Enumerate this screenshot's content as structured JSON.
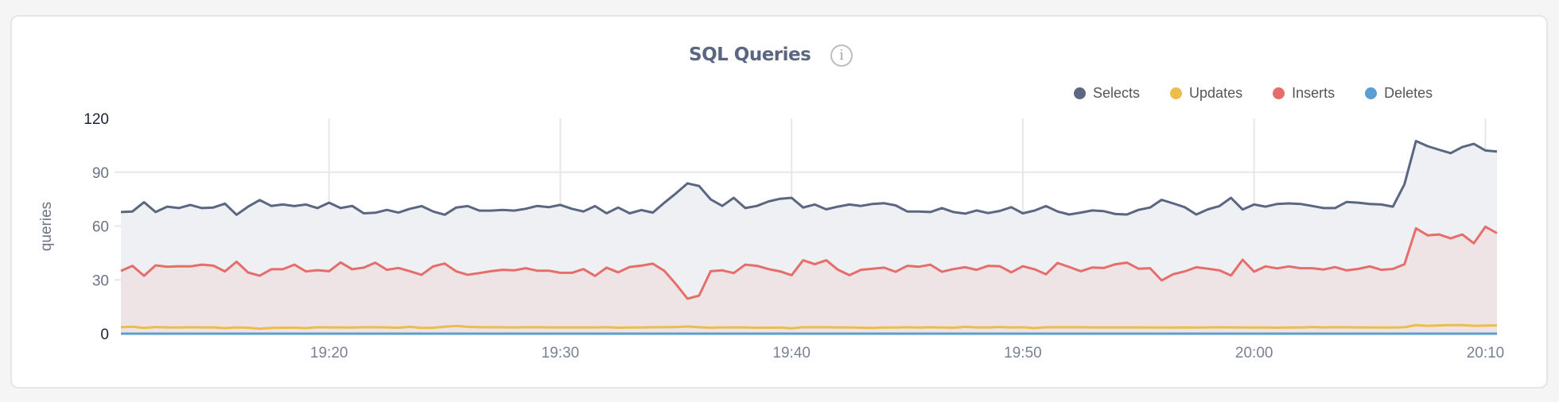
{
  "chart_data": {
    "type": "area",
    "title": "SQL Queries",
    "ylabel": "queries",
    "xlabel": "",
    "ylim": [
      0,
      120
    ],
    "yticks": [
      "0",
      "30",
      "60",
      "90",
      "120"
    ],
    "xticks": [
      "19:20",
      "19:30",
      "19:40",
      "19:50",
      "20:00",
      "20:10"
    ],
    "xlim": [
      "19:11:00",
      "20:10:30"
    ],
    "grid": true,
    "legend_position": "top-right",
    "x": [
      "19:11:00",
      "19:11:30",
      "19:12:00",
      "19:12:30",
      "19:13:00",
      "19:13:30",
      "19:14:00",
      "19:14:30",
      "19:15:00",
      "19:15:30",
      "19:16:00",
      "19:16:30",
      "19:17:00",
      "19:17:30",
      "19:18:00",
      "19:18:30",
      "19:19:00",
      "19:19:30",
      "19:20:00",
      "19:20:30",
      "19:21:00",
      "19:21:30",
      "19:22:00",
      "19:22:30",
      "19:23:00",
      "19:23:30",
      "19:24:00",
      "19:24:30",
      "19:25:00",
      "19:25:30",
      "19:26:00",
      "19:26:30",
      "19:27:00",
      "19:27:30",
      "19:28:00",
      "19:28:30",
      "19:29:00",
      "19:29:30",
      "19:30:00",
      "19:30:30",
      "19:31:00",
      "19:31:30",
      "19:32:00",
      "19:32:30",
      "19:33:00",
      "19:33:30",
      "19:34:00",
      "19:34:30",
      "19:35:00",
      "19:35:30",
      "19:36:00",
      "19:36:30",
      "19:37:00",
      "19:37:30",
      "19:38:00",
      "19:38:30",
      "19:39:00",
      "19:39:30",
      "19:40:00",
      "19:40:30",
      "19:41:00",
      "19:41:30",
      "19:42:00",
      "19:42:30",
      "19:43:00",
      "19:43:30",
      "19:44:00",
      "19:44:30",
      "19:45:00",
      "19:45:30",
      "19:46:00",
      "19:46:30",
      "19:47:00",
      "19:47:30",
      "19:48:00",
      "19:48:30",
      "19:49:00",
      "19:49:30",
      "19:50:00",
      "19:50:30",
      "19:51:00",
      "19:51:30",
      "19:52:00",
      "19:52:30",
      "19:53:00",
      "19:53:30",
      "19:54:00",
      "19:54:30",
      "19:55:00",
      "19:55:30",
      "19:56:00",
      "19:56:30",
      "19:57:00",
      "19:57:30",
      "19:58:00",
      "19:58:30",
      "19:59:00",
      "19:59:30",
      "20:00:00",
      "20:00:30",
      "20:01:00",
      "20:01:30",
      "20:02:00",
      "20:02:30",
      "20:03:00",
      "20:03:30",
      "20:04:00",
      "20:04:30",
      "20:05:00",
      "20:05:30",
      "20:06:00",
      "20:06:30",
      "20:07:00",
      "20:07:30",
      "20:08:00",
      "20:08:30",
      "20:09:00",
      "20:09:30",
      "20:10:00",
      "20:10:30"
    ],
    "series": [
      {
        "name": "Selects",
        "color": "#5b6781",
        "fill": "#eef0f4",
        "values": [
          67.8,
          68.1,
          73.3,
          67.8,
          70.8,
          70.0,
          71.8,
          70.0,
          70.3,
          72.5,
          66.3,
          70.8,
          74.5,
          71.2,
          72.0,
          71.1,
          72.0,
          70.0,
          73.0,
          70.0,
          71.2,
          67.1,
          67.4,
          69.0,
          67.5,
          69.6,
          71.1,
          68.1,
          66.3,
          70.3,
          71.1,
          68.6,
          68.6,
          69.0,
          68.6,
          69.6,
          71.2,
          70.5,
          71.8,
          69.6,
          68.1,
          71.1,
          67.1,
          70.3,
          67.1,
          68.9,
          67.5,
          73.0,
          78.2,
          83.8,
          82.3,
          74.9,
          71.2,
          75.7,
          70.0,
          71.2,
          73.7,
          75.2,
          75.7,
          70.3,
          72.0,
          69.3,
          70.8,
          72.0,
          71.2,
          72.3,
          72.7,
          71.5,
          68.1,
          68.1,
          67.8,
          70.0,
          67.8,
          66.9,
          68.7,
          67.2,
          68.4,
          70.5,
          67.1,
          68.6,
          71.1,
          68.1,
          66.4,
          67.5,
          68.7,
          68.3,
          66.7,
          66.4,
          69.0,
          70.3,
          74.6,
          72.6,
          70.5,
          66.4,
          69.3,
          71.1,
          75.7,
          69.2,
          72.0,
          70.8,
          72.3,
          72.6,
          72.3,
          71.2,
          70.0,
          70.0,
          73.4,
          73.0,
          72.3,
          72.0,
          70.8,
          83.3,
          107.4,
          104.5,
          102.5,
          100.6,
          104.0,
          105.8,
          102.1,
          101.5
        ]
      },
      {
        "name": "Updates",
        "color": "#ecbd4a",
        "fill": "#f3ecdf",
        "values": [
          3.6,
          3.9,
          3.2,
          3.7,
          3.5,
          3.4,
          3.6,
          3.5,
          3.5,
          3.1,
          3.5,
          3.3,
          2.8,
          3.2,
          3.3,
          3.3,
          3.1,
          3.6,
          3.5,
          3.5,
          3.4,
          3.6,
          3.6,
          3.5,
          3.3,
          3.8,
          3.2,
          3.3,
          3.9,
          4.3,
          3.8,
          3.6,
          3.6,
          3.6,
          3.5,
          3.6,
          3.6,
          3.5,
          3.5,
          3.5,
          3.5,
          3.5,
          3.6,
          3.3,
          3.5,
          3.4,
          3.6,
          3.6,
          3.7,
          4.0,
          3.6,
          3.3,
          3.5,
          3.5,
          3.5,
          3.3,
          3.3,
          3.4,
          3.0,
          3.6,
          3.6,
          3.6,
          3.5,
          3.5,
          3.3,
          3.2,
          3.5,
          3.4,
          3.6,
          3.4,
          3.6,
          3.4,
          3.3,
          3.8,
          3.5,
          3.5,
          3.7,
          3.5,
          3.6,
          3.1,
          3.6,
          3.6,
          3.6,
          3.6,
          3.5,
          3.5,
          3.5,
          3.5,
          3.5,
          3.4,
          3.4,
          3.4,
          3.5,
          3.4,
          3.5,
          3.6,
          3.5,
          3.5,
          3.4,
          3.4,
          3.3,
          3.5,
          3.4,
          3.7,
          3.5,
          3.6,
          3.6,
          3.5,
          3.5,
          3.4,
          3.4,
          3.6,
          4.8,
          4.4,
          4.6,
          4.8,
          4.8,
          4.4,
          4.5,
          4.6
        ]
      },
      {
        "name": "Inserts",
        "color": "#e56e6a",
        "fill": "#eee3e5",
        "values": [
          35.0,
          37.8,
          32.3,
          38.1,
          37.3,
          37.6,
          37.5,
          38.5,
          37.9,
          34.7,
          40.1,
          34.1,
          32.3,
          35.9,
          35.9,
          38.5,
          34.7,
          35.4,
          34.8,
          39.7,
          35.9,
          36.8,
          39.6,
          35.6,
          36.6,
          34.8,
          32.8,
          37.5,
          39.1,
          34.7,
          32.8,
          33.8,
          34.8,
          35.6,
          35.3,
          36.5,
          35.1,
          35.1,
          33.9,
          33.9,
          36.0,
          32.2,
          36.8,
          34.2,
          37.2,
          37.9,
          39.0,
          35.0,
          27.6,
          19.5,
          21.2,
          34.8,
          35.3,
          33.8,
          38.5,
          37.8,
          36.0,
          34.7,
          32.6,
          40.9,
          38.7,
          40.9,
          35.7,
          32.6,
          35.6,
          36.2,
          36.8,
          34.5,
          37.8,
          37.3,
          38.5,
          34.5,
          36.0,
          37.0,
          35.6,
          37.8,
          37.6,
          34.2,
          37.6,
          35.9,
          33.1,
          39.4,
          37.2,
          34.8,
          36.9,
          36.6,
          38.7,
          39.6,
          36.2,
          36.5,
          29.7,
          33.1,
          34.7,
          37.0,
          36.2,
          35.3,
          32.4,
          41.2,
          34.6,
          37.5,
          36.4,
          37.5,
          36.5,
          36.5,
          35.8,
          37.1,
          35.3,
          36.1,
          37.5,
          35.6,
          36.1,
          38.7,
          58.7,
          54.8,
          55.3,
          53.1,
          55.3,
          50.4,
          59.6,
          56.0
        ]
      },
      {
        "name": "Deletes",
        "color": "#5b9fd2",
        "fill": "#dde9f3",
        "values": [
          0,
          0,
          0,
          0,
          0,
          0,
          0,
          0,
          0,
          0,
          0,
          0,
          0,
          0,
          0,
          0,
          0,
          0,
          0,
          0,
          0,
          0,
          0,
          0,
          0,
          0,
          0,
          0,
          0,
          0,
          0,
          0,
          0,
          0,
          0,
          0,
          0,
          0,
          0,
          0,
          0,
          0,
          0,
          0,
          0,
          0,
          0,
          0,
          0,
          0,
          0,
          0,
          0,
          0,
          0,
          0,
          0,
          0,
          0,
          0,
          0,
          0,
          0,
          0,
          0,
          0,
          0,
          0,
          0,
          0,
          0,
          0,
          0,
          0,
          0,
          0,
          0,
          0,
          0,
          0,
          0,
          0,
          0,
          0,
          0,
          0,
          0,
          0,
          0,
          0,
          0,
          0,
          0,
          0,
          0,
          0,
          0,
          0,
          0,
          0,
          0,
          0,
          0,
          0,
          0,
          0,
          0,
          0,
          0,
          0,
          0,
          0,
          0,
          0,
          0,
          0,
          0,
          0,
          0,
          0
        ]
      }
    ]
  },
  "header": {
    "title": "SQL Queries",
    "info_icon": "info-circle-icon"
  }
}
